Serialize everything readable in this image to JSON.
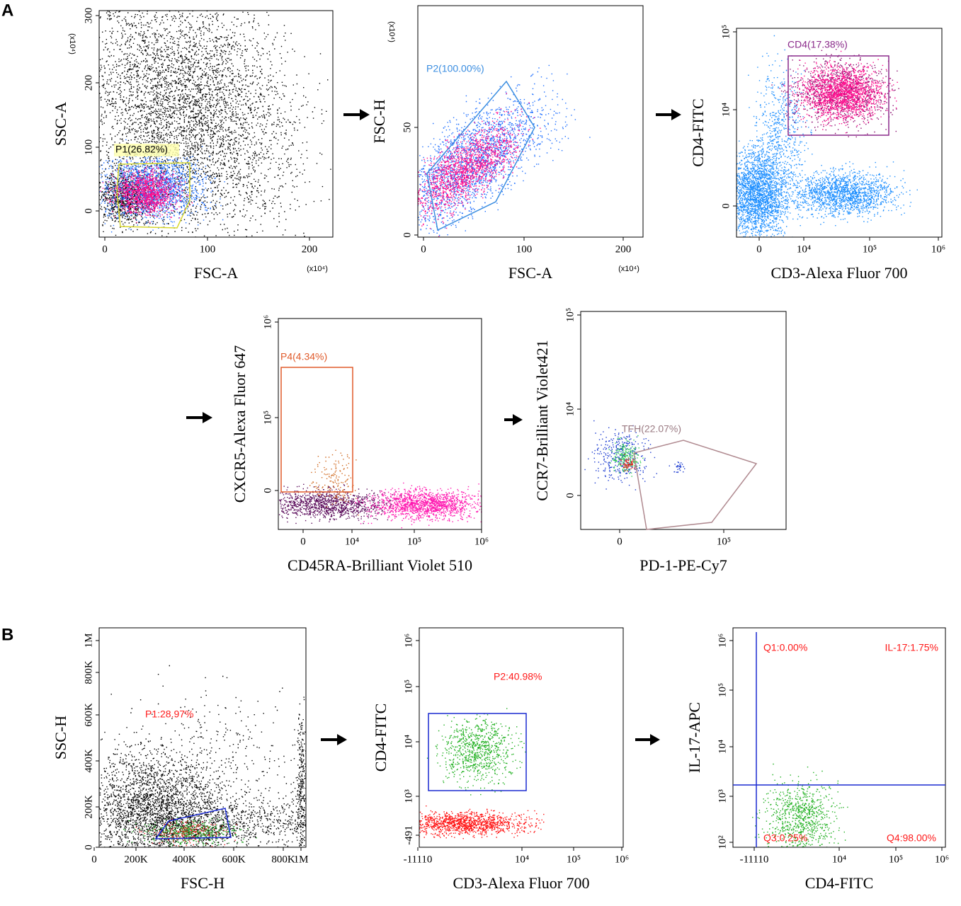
{
  "figure": {
    "panel_letters": [
      "A",
      "B"
    ],
    "panels": [
      {
        "x_label": "FSC-A",
        "y_label": "SSC-A",
        "x_ticks": [
          "0",
          "100",
          "200"
        ],
        "y_ticks": [
          "0",
          "100",
          "200",
          "300"
        ],
        "x_unit": "(x10⁴)",
        "y_unit": "(x10⁴)",
        "gates": [
          "P1(26.82%)"
        ]
      },
      {
        "x_label": "FSC-A",
        "y_label": "FSC-H",
        "x_ticks": [
          "0",
          "100",
          "200"
        ],
        "y_ticks": [
          "0",
          "50"
        ],
        "x_unit": "(x10⁴)",
        "y_unit": "(x10⁴)",
        "gates": [
          "P2(100.00%)"
        ]
      },
      {
        "x_label": "CD3-Alexa Fluor 700",
        "y_label": "CD4-FITC",
        "x_ticks": [
          "0",
          "10⁴",
          "10⁵",
          "10⁶"
        ],
        "y_ticks": [
          "0",
          "10⁴",
          "10⁵"
        ],
        "gates": [
          "CD4(17.38%)"
        ]
      },
      {
        "x_label": "CD45RA-Brilliant Violet 510",
        "y_label": "CXCR5-Alexa Fluor 647",
        "x_ticks": [
          "0",
          "10⁴",
          "10⁵",
          "10⁶"
        ],
        "y_ticks": [
          "0",
          "10⁵",
          "10⁶"
        ],
        "gates": [
          "P4(4.34%)"
        ]
      },
      {
        "x_label": "PD-1-PE-Cy7",
        "y_label": "CCR7-Brilliant Violet421",
        "x_ticks": [
          "0",
          "10⁵"
        ],
        "y_ticks": [
          "0",
          "10⁴",
          "10⁵"
        ],
        "gates": [
          "TFH(22.07%)"
        ]
      },
      {
        "x_label": "FSC-H",
        "y_label": "SSC-H",
        "x_ticks": [
          "0",
          "200K",
          "400K",
          "600K",
          "800K",
          "1M"
        ],
        "y_ticks": [
          "0",
          "200K",
          "400K",
          "600K",
          "800K",
          "1M"
        ],
        "gates": [
          "P1:28.97%"
        ]
      },
      {
        "x_label": "CD3-Alexa Fluor 700",
        "y_label": "CD4-FITC",
        "x_ticks": [
          "-11110",
          "10⁴",
          "10⁵",
          "10⁶"
        ],
        "y_ticks": [
          "-491",
          "10³",
          "10⁴",
          "10⁵",
          "10⁶"
        ],
        "gates": [
          "P2:40.98%"
        ]
      },
      {
        "x_label": "CD4-FITC",
        "y_label": "IL-17-APC",
        "x_ticks": [
          "-11110",
          "10⁴",
          "10⁵",
          "10⁶"
        ],
        "y_ticks": [
          "10²",
          "10³",
          "10⁴",
          "10⁵",
          "10⁶"
        ],
        "gates": [
          "Q1:0.00%",
          "IL-17:1.75%",
          "Q3:0.25%",
          "Q4:98.00%"
        ]
      }
    ]
  }
}
